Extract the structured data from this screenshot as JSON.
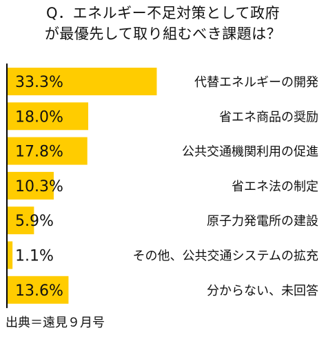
{
  "title_lines": [
    "Q．エネルギー不足対策として政府",
    "が最優先して取り組むべき課題は？"
  ],
  "source": "出典＝遠見９月号",
  "colors": {
    "bar": "#FFCC00",
    "axis": "#000000",
    "text": "#111111"
  },
  "chart_data": {
    "type": "bar",
    "orientation": "horizontal",
    "title": "Q．エネルギー不足対策として政府が最優先して取り組むべき課題は？",
    "categories": [
      "代替エネルギーの開発",
      "省エネ商品の奨励",
      "公共交通機関利用の促進",
      "省エネ法の制定",
      "原子力発電所の建設",
      "その他、公共交通システムの拡充",
      "分からない、未回答"
    ],
    "values": [
      33.3,
      18.0,
      17.8,
      10.3,
      5.9,
      1.1,
      13.6
    ],
    "value_labels": [
      "33.3%",
      "18.0%",
      "17.8%",
      "10.3%",
      "5.9%",
      "1.1%",
      "13.6%"
    ],
    "unit": "%",
    "grid": false,
    "legend": "none"
  }
}
